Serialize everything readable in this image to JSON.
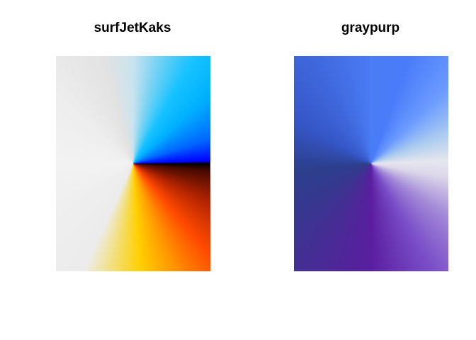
{
  "panels": [
    {
      "title": "surfJetKaks"
    },
    {
      "title": "graypurp"
    }
  ]
}
